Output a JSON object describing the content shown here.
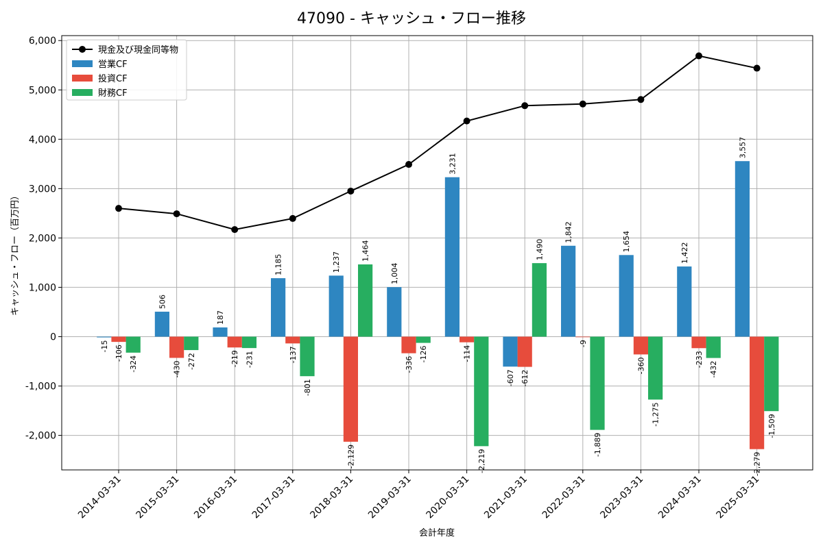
{
  "chart_data": {
    "type": "bar",
    "title": "47090 - キャッシュ・フロー推移",
    "xlabel": "会計年度",
    "ylabel": "キャッシュ・フロー（百万円）",
    "ylim": [
      -2700,
      6100
    ],
    "yticks": [
      -2000,
      -1000,
      0,
      1000,
      2000,
      3000,
      4000,
      5000,
      6000
    ],
    "ytick_labels": [
      "-2,000",
      "-1,000",
      "0",
      "1,000",
      "2,000",
      "3,000",
      "4,000",
      "5,000",
      "6,000"
    ],
    "grid": true,
    "legend_position": "top-left",
    "categories": [
      "2014-03-31",
      "2015-03-31",
      "2016-03-31",
      "2017-03-31",
      "2018-03-31",
      "2019-03-31",
      "2020-03-31",
      "2021-03-31",
      "2022-03-31",
      "2023-03-31",
      "2024-03-31",
      "2025-03-31"
    ],
    "series": [
      {
        "name": "営業CF",
        "kind": "bar",
        "color": "#2e86c1",
        "values": [
          -15,
          506,
          187,
          1185,
          1237,
          1004,
          3231,
          -607,
          1842,
          1654,
          1422,
          3557
        ],
        "labels": [
          "-15",
          "506",
          "187",
          "1,185",
          "1,237",
          "1,004",
          "3,231",
          "-607",
          "1,842",
          "1,654",
          "1,422",
          "3,557"
        ]
      },
      {
        "name": "投資CF",
        "kind": "bar",
        "color": "#e74c3c",
        "values": [
          -106,
          -430,
          -219,
          -137,
          -2129,
          -336,
          -114,
          -612,
          -9,
          -360,
          -233,
          -2279
        ],
        "labels": [
          "-106",
          "-430",
          "-219",
          "-137",
          "-2,129",
          "-336",
          "-114",
          "-612",
          "-9",
          "-360",
          "-233",
          "-2,279"
        ]
      },
      {
        "name": "財務CF",
        "kind": "bar",
        "color": "#27ae60",
        "values": [
          -324,
          -272,
          -231,
          -801,
          1464,
          -126,
          -2219,
          1490,
          -1889,
          -1275,
          -432,
          -1509
        ],
        "labels": [
          "-324",
          "-272",
          "-231",
          "-801",
          "1,464",
          "-126",
          "-2,219",
          "1,490",
          "-1,889",
          "-1,275",
          "-432",
          "-1,509"
        ]
      },
      {
        "name": "現金及び現金同等物",
        "kind": "line",
        "color": "#000000",
        "values": [
          2600,
          2490,
          2170,
          2395,
          2950,
          3490,
          4370,
          4680,
          4715,
          4805,
          5690,
          5440
        ]
      }
    ]
  }
}
